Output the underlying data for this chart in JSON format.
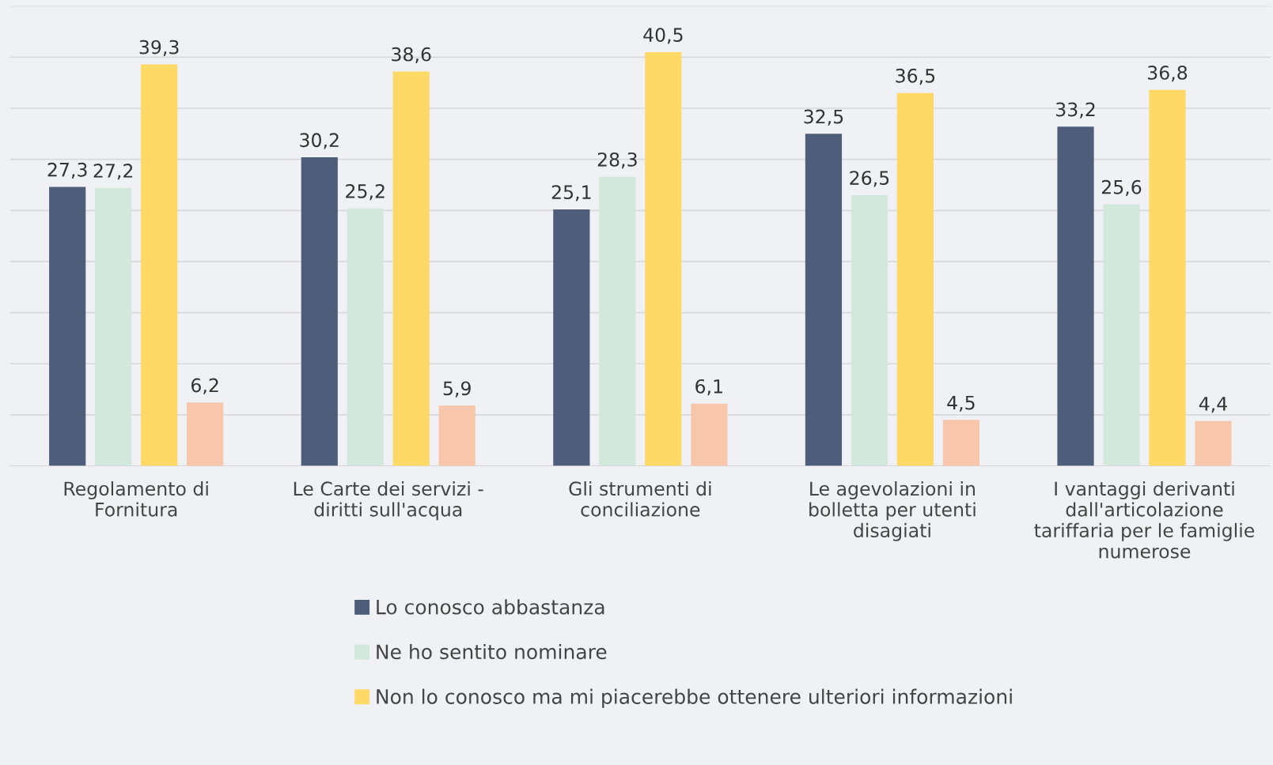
{
  "chart_data": {
    "type": "bar",
    "categories": [
      "Regolamento di\nFornitura",
      "Le Carte dei servizi -\ndiritti sull'acqua",
      "Gli strumenti di\nconciliazione",
      "Le agevolazioni in\nbolletta per utenti\ndisagiati",
      "I vantaggi derivanti\ndall'articolazione\ntariffaria per le famiglie\nnumerose"
    ],
    "series": [
      {
        "name": "Lo conosco abbastanza",
        "color": "#4e5d7a",
        "values": [
          27.3,
          30.2,
          25.1,
          32.5,
          33.2
        ],
        "value_labels": [
          "27,3",
          "30,2",
          "25,1",
          "32,5",
          "33,2"
        ]
      },
      {
        "name": "Ne ho sentito nominare",
        "color": "#d3e8dc",
        "values": [
          27.2,
          25.2,
          28.3,
          26.5,
          25.6
        ],
        "value_labels": [
          "27,2",
          "25,2",
          "28,3",
          "26,5",
          "25,6"
        ]
      },
      {
        "name": "Non lo conosco ma mi piacerebbe ottenere ulteriori informazioni",
        "color": "#ffd966",
        "values": [
          39.3,
          38.6,
          40.5,
          36.5,
          36.8
        ],
        "value_labels": [
          "39,3",
          "38,6",
          "40,5",
          "36,5",
          "36,8"
        ]
      },
      {
        "color": "#f8c6ab",
        "values": [
          6.2,
          5.9,
          6.1,
          4.5,
          4.4
        ],
        "value_labels": [
          "6,2",
          "5,9",
          "6,1",
          "4,5",
          "4,4"
        ]
      }
    ],
    "ylim": [
      0,
      45
    ],
    "yticks": [
      {
        "value": 0,
        "label": null
      },
      {
        "value": 5,
        "label": null
      },
      {
        "value": 10,
        "label": null
      },
      {
        "value": 15,
        "label": null
      },
      {
        "value": 20,
        "label": null
      },
      {
        "value": 25,
        "label": null
      },
      {
        "value": 30,
        "label": null
      },
      {
        "value": 35,
        "label": null
      },
      {
        "value": 40,
        "label": null
      },
      {
        "value": 45,
        "label": null
      }
    ],
    "tick_labels": "x",
    "grid": "y",
    "legend": "bottom"
  }
}
